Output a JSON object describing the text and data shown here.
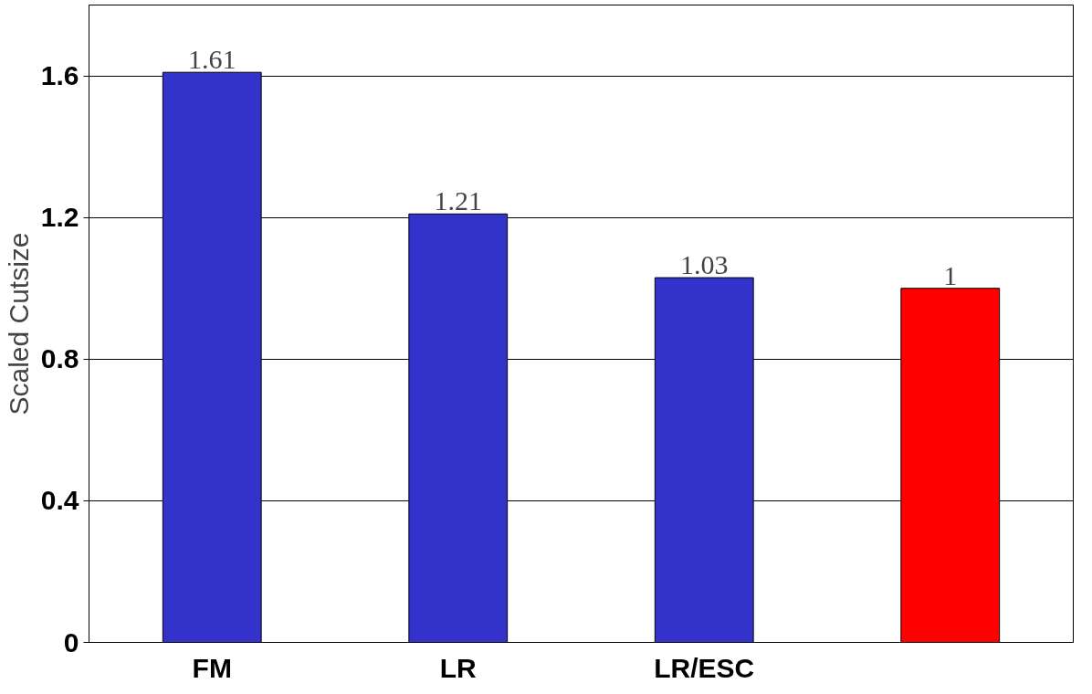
{
  "chart_data": {
    "type": "bar",
    "ylabel": "Scaled Cutsize",
    "categories": [
      "FM",
      "LR",
      "LR/ESC",
      null
    ],
    "values": [
      1.61,
      1.21,
      1.03,
      1
    ],
    "colors": [
      "#3333cc",
      "#3333cc",
      "#3333cc",
      "#ff0000"
    ],
    "ylim": [
      0,
      1.8
    ],
    "yticks": [
      0,
      0.4,
      0.8,
      1.2,
      1.6
    ],
    "grid": "y",
    "data_labels": true
  }
}
